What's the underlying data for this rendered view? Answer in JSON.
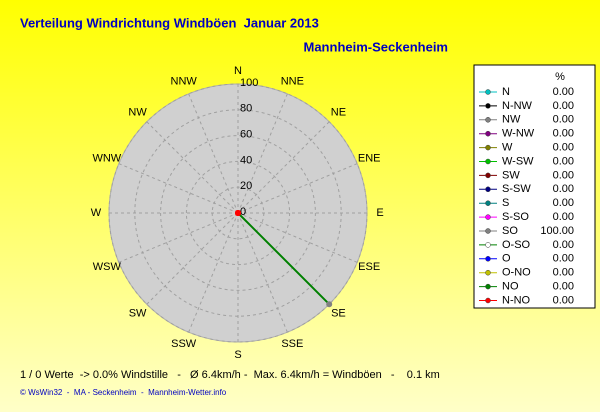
{
  "chart_data": {
    "type": "radar",
    "title": "Verteilung Windrichtung Windböen  Januar 2013",
    "subtitle": "Mannheim-Seckenheim",
    "categories": [
      "N",
      "NNE",
      "NE",
      "ENE",
      "E",
      "ESE",
      "SE",
      "SSE",
      "S",
      "SSW",
      "SW",
      "WSW",
      "W",
      "WNW",
      "NW",
      "NNW"
    ],
    "values": [
      0,
      0,
      0,
      0,
      0,
      0,
      100,
      0,
      0,
      0,
      0,
      0,
      0,
      0,
      0,
      0
    ],
    "color": "#008000",
    "ylim": [
      0,
      100
    ],
    "yticks": [
      0,
      20,
      40,
      60,
      80,
      100
    ],
    "grid": true,
    "legend": {
      "title": "%",
      "names": [
        "N",
        "N-NW",
        "NW",
        "W-NW",
        "W",
        "W-SW",
        "SW",
        "S-SW",
        "S",
        "S-SO",
        "SO",
        "O-SO",
        "O",
        "O-NO",
        "NO",
        "N-NO"
      ],
      "colors": [
        "#00c0c0",
        "#000000",
        "#808080",
        "#800080",
        "#808000",
        "#00c000",
        "#800000",
        "#000080",
        "#008080",
        "#ff00ff",
        "#808080",
        "#ffffff",
        "#0000ff",
        "#c0c000",
        "#008000",
        "#ff0000"
      ],
      "values": [
        0,
        0,
        0,
        0,
        0,
        0,
        0,
        0,
        0,
        0,
        100,
        0,
        0,
        0,
        0,
        0
      ],
      "value_labels": [
        "0.00",
        "0.00",
        "0.00",
        "0.00",
        "0.00",
        "0.00",
        "0.00",
        "0.00",
        "0.00",
        "0.00",
        "100.00",
        "0.00",
        "0.00",
        "0.00",
        "0.00",
        "0.00"
      ]
    },
    "notes": [
      "1 / 0 Werte  -> 0.0% Windstille   -   Ø 6.4km/h -  Max. 6.4km/h = Windböen   -    0.1 km",
      "© WsWin32  -  MA - Seckenheim  -  Mannheim-Wetter.info"
    ]
  }
}
